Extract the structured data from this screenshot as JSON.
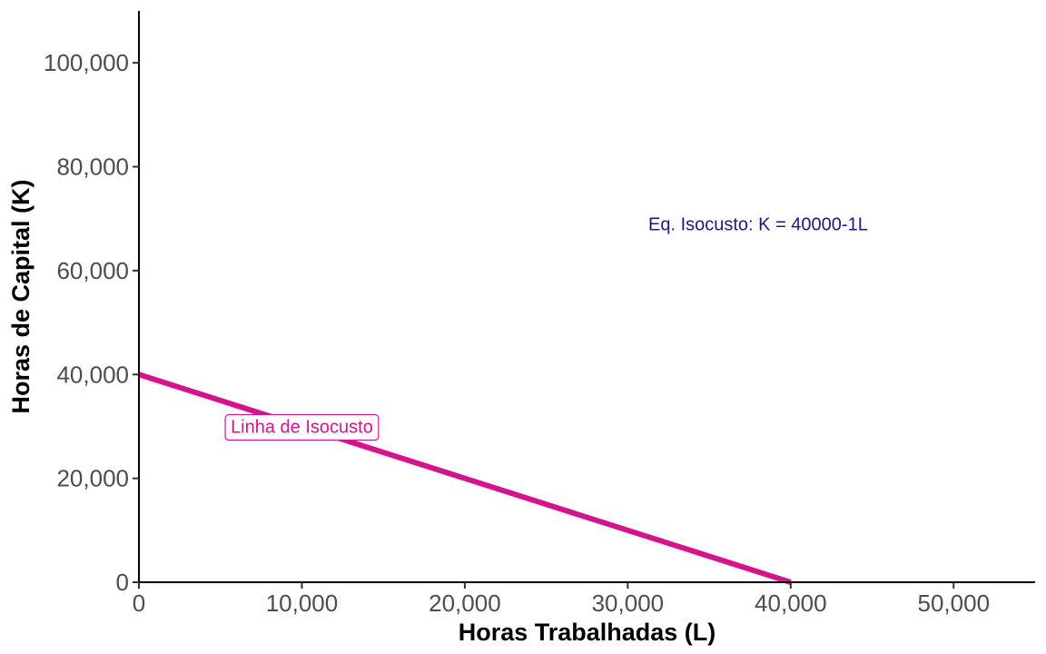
{
  "chart_data": {
    "type": "line",
    "xlabel": "Horas Trabalhadas (L)",
    "ylabel": "Horas de Capital (K)",
    "xlim": [
      0,
      55000
    ],
    "ylim": [
      0,
      110000
    ],
    "x_ticks": [
      0,
      10000,
      20000,
      30000,
      40000,
      50000
    ],
    "x_tick_labels": [
      "0",
      "10,000",
      "20,000",
      "30,000",
      "40,000",
      "50,000"
    ],
    "y_ticks": [
      0,
      20000,
      40000,
      60000,
      80000,
      100000
    ],
    "y_tick_labels": [
      "0",
      "20,000",
      "40,000",
      "60,000",
      "80,000",
      "100,000"
    ],
    "grid": false,
    "series": [
      {
        "x": [
          0,
          40000
        ],
        "y": [
          40000,
          0
        ],
        "color": "#d4148c"
      }
    ],
    "annotations": [
      {
        "text": "Eq. Isocusto: K = 40000-1L",
        "x": 38000,
        "y": 69000,
        "color": "#1a1a80",
        "boxed": false
      },
      {
        "text": "Linha de Isocusto",
        "x": 10000,
        "y": 30000,
        "color": "#d4148c",
        "boxed": true
      }
    ]
  }
}
